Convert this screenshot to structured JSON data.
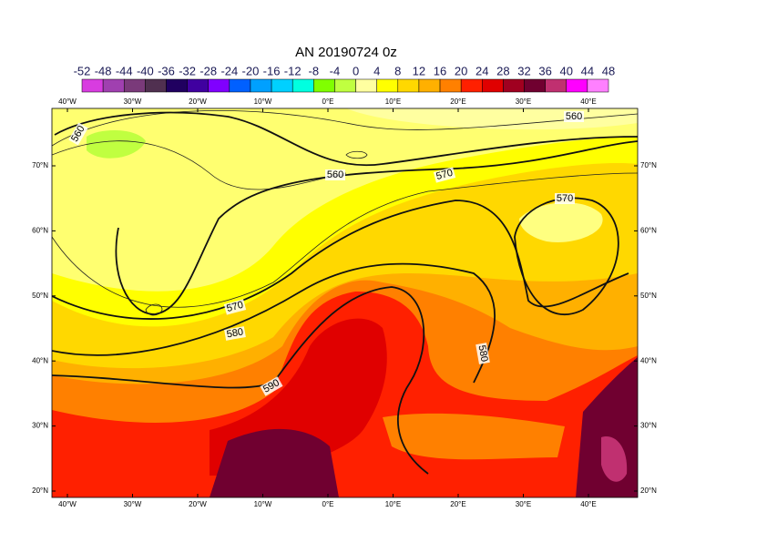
{
  "title": "AN  20190724 0z",
  "colorbar": {
    "labels": [
      "-52",
      "-48",
      "-44",
      "-40",
      "-36",
      "-32",
      "-28",
      "-24",
      "-20",
      "-16",
      "-12",
      "-8",
      "-4",
      "0",
      "4",
      "8",
      "12",
      "16",
      "20",
      "24",
      "28",
      "32",
      "36",
      "40",
      "44",
      "48"
    ],
    "colors": [
      "#d83ce0",
      "#a040b0",
      "#7a3a7a",
      "#503050",
      "#200060",
      "#4000a0",
      "#8000ff",
      "#0060ff",
      "#00a0ff",
      "#00d0ff",
      "#00ffe0",
      "#80ff00",
      "#c0ff40",
      "#ffffa0",
      "#ffff00",
      "#ffd800",
      "#ffb000",
      "#ff8000",
      "#ff2000",
      "#e00000",
      "#a00020",
      "#700030",
      "#c03070",
      "#ff00ff",
      "#ff80ff"
    ]
  },
  "map": {
    "lon_labels": [
      "40°W",
      "30°W",
      "20°W",
      "10°W",
      "0°E",
      "10°E",
      "20°E",
      "30°E",
      "40°E"
    ],
    "lat_labels": [
      "20°N",
      "30°N",
      "40°N",
      "50°N",
      "60°N",
      "70°N"
    ],
    "contour_labels": [
      "560",
      "560",
      "570",
      "570",
      "560",
      "570",
      "580",
      "590",
      "580"
    ]
  }
}
